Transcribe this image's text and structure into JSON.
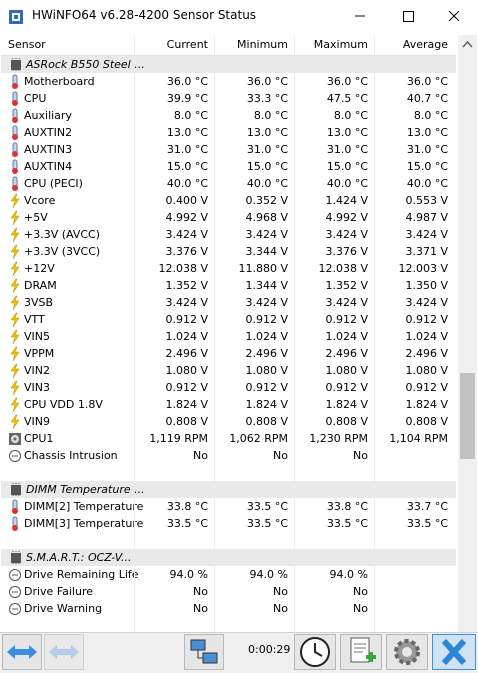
{
  "window": {
    "title": "HWiNFO64 v6.28-4200 Sensor Status"
  },
  "table": {
    "columns": [
      "Sensor",
      "Current",
      "Minimum",
      "Maximum",
      "Average"
    ],
    "rows": [
      {
        "group": "ASRock B550 Steel ..."
      },
      {
        "icon": "temp",
        "cells": [
          "Motherboard",
          "36.0 °C",
          "36.0 °C",
          "36.0 °C",
          "36.0 °C"
        ]
      },
      {
        "icon": "temp",
        "cells": [
          "CPU",
          "39.9 °C",
          "33.3 °C",
          "47.5 °C",
          "40.7 °C"
        ]
      },
      {
        "icon": "temp",
        "cells": [
          "Auxiliary",
          "8.0 °C",
          "8.0 °C",
          "8.0 °C",
          "8.0 °C"
        ]
      },
      {
        "icon": "temp",
        "cells": [
          "AUXTIN2",
          "13.0 °C",
          "13.0 °C",
          "13.0 °C",
          "13.0 °C"
        ]
      },
      {
        "icon": "temp",
        "cells": [
          "AUXTIN3",
          "31.0 °C",
          "31.0 °C",
          "31.0 °C",
          "31.0 °C"
        ]
      },
      {
        "icon": "temp",
        "cells": [
          "AUXTIN4",
          "15.0 °C",
          "15.0 °C",
          "15.0 °C",
          "15.0 °C"
        ]
      },
      {
        "icon": "temp",
        "cells": [
          "CPU (PECI)",
          "40.0 °C",
          "40.0 °C",
          "40.0 °C",
          "40.0 °C"
        ]
      },
      {
        "icon": "volt",
        "cells": [
          "Vcore",
          "0.400 V",
          "0.352 V",
          "1.424 V",
          "0.553 V"
        ]
      },
      {
        "icon": "volt",
        "cells": [
          "+5V",
          "4.992 V",
          "4.968 V",
          "4.992 V",
          "4.987 V"
        ]
      },
      {
        "icon": "volt",
        "cells": [
          "+3.3V (AVCC)",
          "3.424 V",
          "3.424 V",
          "3.424 V",
          "3.424 V"
        ]
      },
      {
        "icon": "volt",
        "cells": [
          "+3.3V (3VCC)",
          "3.376 V",
          "3.344 V",
          "3.376 V",
          "3.371 V"
        ]
      },
      {
        "icon": "volt",
        "cells": [
          "+12V",
          "12.038 V",
          "11.880 V",
          "12.038 V",
          "12.003 V"
        ]
      },
      {
        "icon": "volt",
        "cells": [
          "DRAM",
          "1.352 V",
          "1.344 V",
          "1.352 V",
          "1.350 V"
        ]
      },
      {
        "icon": "volt",
        "cells": [
          "3VSB",
          "3.424 V",
          "3.424 V",
          "3.424 V",
          "3.424 V"
        ]
      },
      {
        "icon": "volt",
        "cells": [
          "VTT",
          "0.912 V",
          "0.912 V",
          "0.912 V",
          "0.912 V"
        ]
      },
      {
        "icon": "volt",
        "cells": [
          "VIN5",
          "1.024 V",
          "1.024 V",
          "1.024 V",
          "1.024 V"
        ]
      },
      {
        "icon": "volt",
        "cells": [
          "VPPM",
          "2.496 V",
          "2.496 V",
          "2.496 V",
          "2.496 V"
        ]
      },
      {
        "icon": "volt",
        "cells": [
          "VIN2",
          "1.080 V",
          "1.080 V",
          "1.080 V",
          "1.080 V"
        ]
      },
      {
        "icon": "volt",
        "cells": [
          "VIN3",
          "0.912 V",
          "0.912 V",
          "0.912 V",
          "0.912 V"
        ]
      },
      {
        "icon": "volt",
        "cells": [
          "CPU VDD 1.8V",
          "1.824 V",
          "1.824 V",
          "1.824 V",
          "1.824 V"
        ]
      },
      {
        "icon": "volt",
        "cells": [
          "VIN9",
          "0.808 V",
          "0.808 V",
          "0.808 V",
          "0.808 V"
        ]
      },
      {
        "icon": "fan",
        "cells": [
          "CPU1",
          "1,119 RPM",
          "1,062 RPM",
          "1,230 RPM",
          "1,104 RPM"
        ]
      },
      {
        "icon": "other",
        "cells": [
          "Chassis Intrusion",
          "No",
          "No",
          "No"
        ]
      },
      null,
      {
        "group": "DIMM Temperature ..."
      },
      {
        "icon": "temp",
        "cells": [
          "DIMM[2] Temperature",
          "33.8 °C",
          "33.5 °C",
          "33.8 °C",
          "33.7 °C"
        ]
      },
      {
        "icon": "temp",
        "cells": [
          "DIMM[3] Temperature",
          "33.5 °C",
          "33.5 °C",
          "33.5 °C",
          "33.5 °C"
        ]
      },
      null,
      {
        "group": "S.M.A.R.T.: OCZ-V..."
      },
      {
        "icon": "other",
        "cells": [
          "Drive Remaining Life",
          "94.0 %",
          "94.0 %",
          "94.0 %"
        ]
      },
      {
        "icon": "other",
        "cells": [
          "Drive Failure",
          "No",
          "No",
          "No"
        ]
      },
      {
        "icon": "other",
        "cells": [
          "Drive Warning",
          "No",
          "No",
          "No"
        ]
      }
    ]
  },
  "toolbar": {
    "elapsed": "0:00:29"
  }
}
